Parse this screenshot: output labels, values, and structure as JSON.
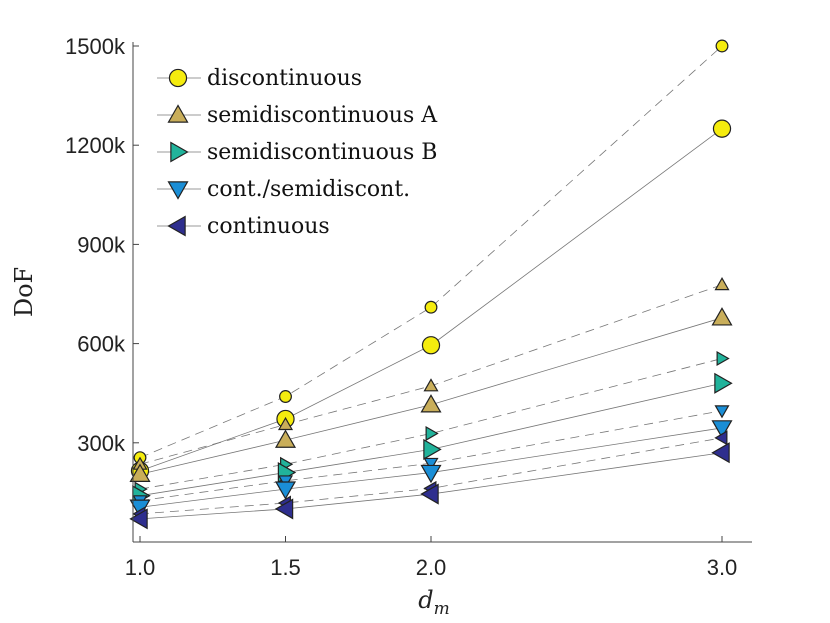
{
  "chart_data": {
    "type": "line",
    "title": "",
    "xlabel": "d_m",
    "ylabel": "DoF",
    "x": [
      1.0,
      1.5,
      2.0,
      3.0
    ],
    "x_tick_labels": [
      "1.0",
      "1.5",
      "2.0",
      "3.0"
    ],
    "y_ticks": [
      300000,
      600000,
      900000,
      1200000,
      1500000
    ],
    "y_tick_labels": [
      "300k",
      "600k",
      "900k",
      "1200k",
      "1500k"
    ],
    "xlim": [
      1.0,
      3.1
    ],
    "ylim": [
      0,
      1500000
    ],
    "legend_position": "top-left",
    "grid": false,
    "series": [
      {
        "name": "discontinuous",
        "marker": "circle",
        "color": "#f5ec0e",
        "dashed_values": [
          255000,
          440000,
          710000,
          1500000
        ],
        "solid_values": [
          215000,
          372000,
          595000,
          1250000
        ]
      },
      {
        "name": "semidiscontinuous A",
        "marker": "triangle-up",
        "color": "#c9ae5a",
        "dashed_values": [
          235000,
          355000,
          472000,
          778000
        ],
        "solid_values": [
          205000,
          308000,
          415000,
          678000
        ]
      },
      {
        "name": "semidiscontinuous B",
        "marker": "triangle-right",
        "color": "#21b39b",
        "dashed_values": [
          160000,
          235000,
          328000,
          555000
        ],
        "solid_values": [
          140000,
          210000,
          280000,
          480000
        ]
      },
      {
        "name": "cont./semidiscont.",
        "marker": "triangle-down",
        "color": "#1a8ed6",
        "dashed_values": [
          125000,
          185000,
          238000,
          397000
        ],
        "solid_values": [
          105000,
          160000,
          210000,
          345000
        ]
      },
      {
        "name": "continuous",
        "marker": "triangle-left",
        "color": "#2e2e8e",
        "dashed_values": [
          85000,
          118000,
          162000,
          315000
        ],
        "solid_values": [
          70000,
          100000,
          145000,
          270000
        ]
      }
    ]
  }
}
